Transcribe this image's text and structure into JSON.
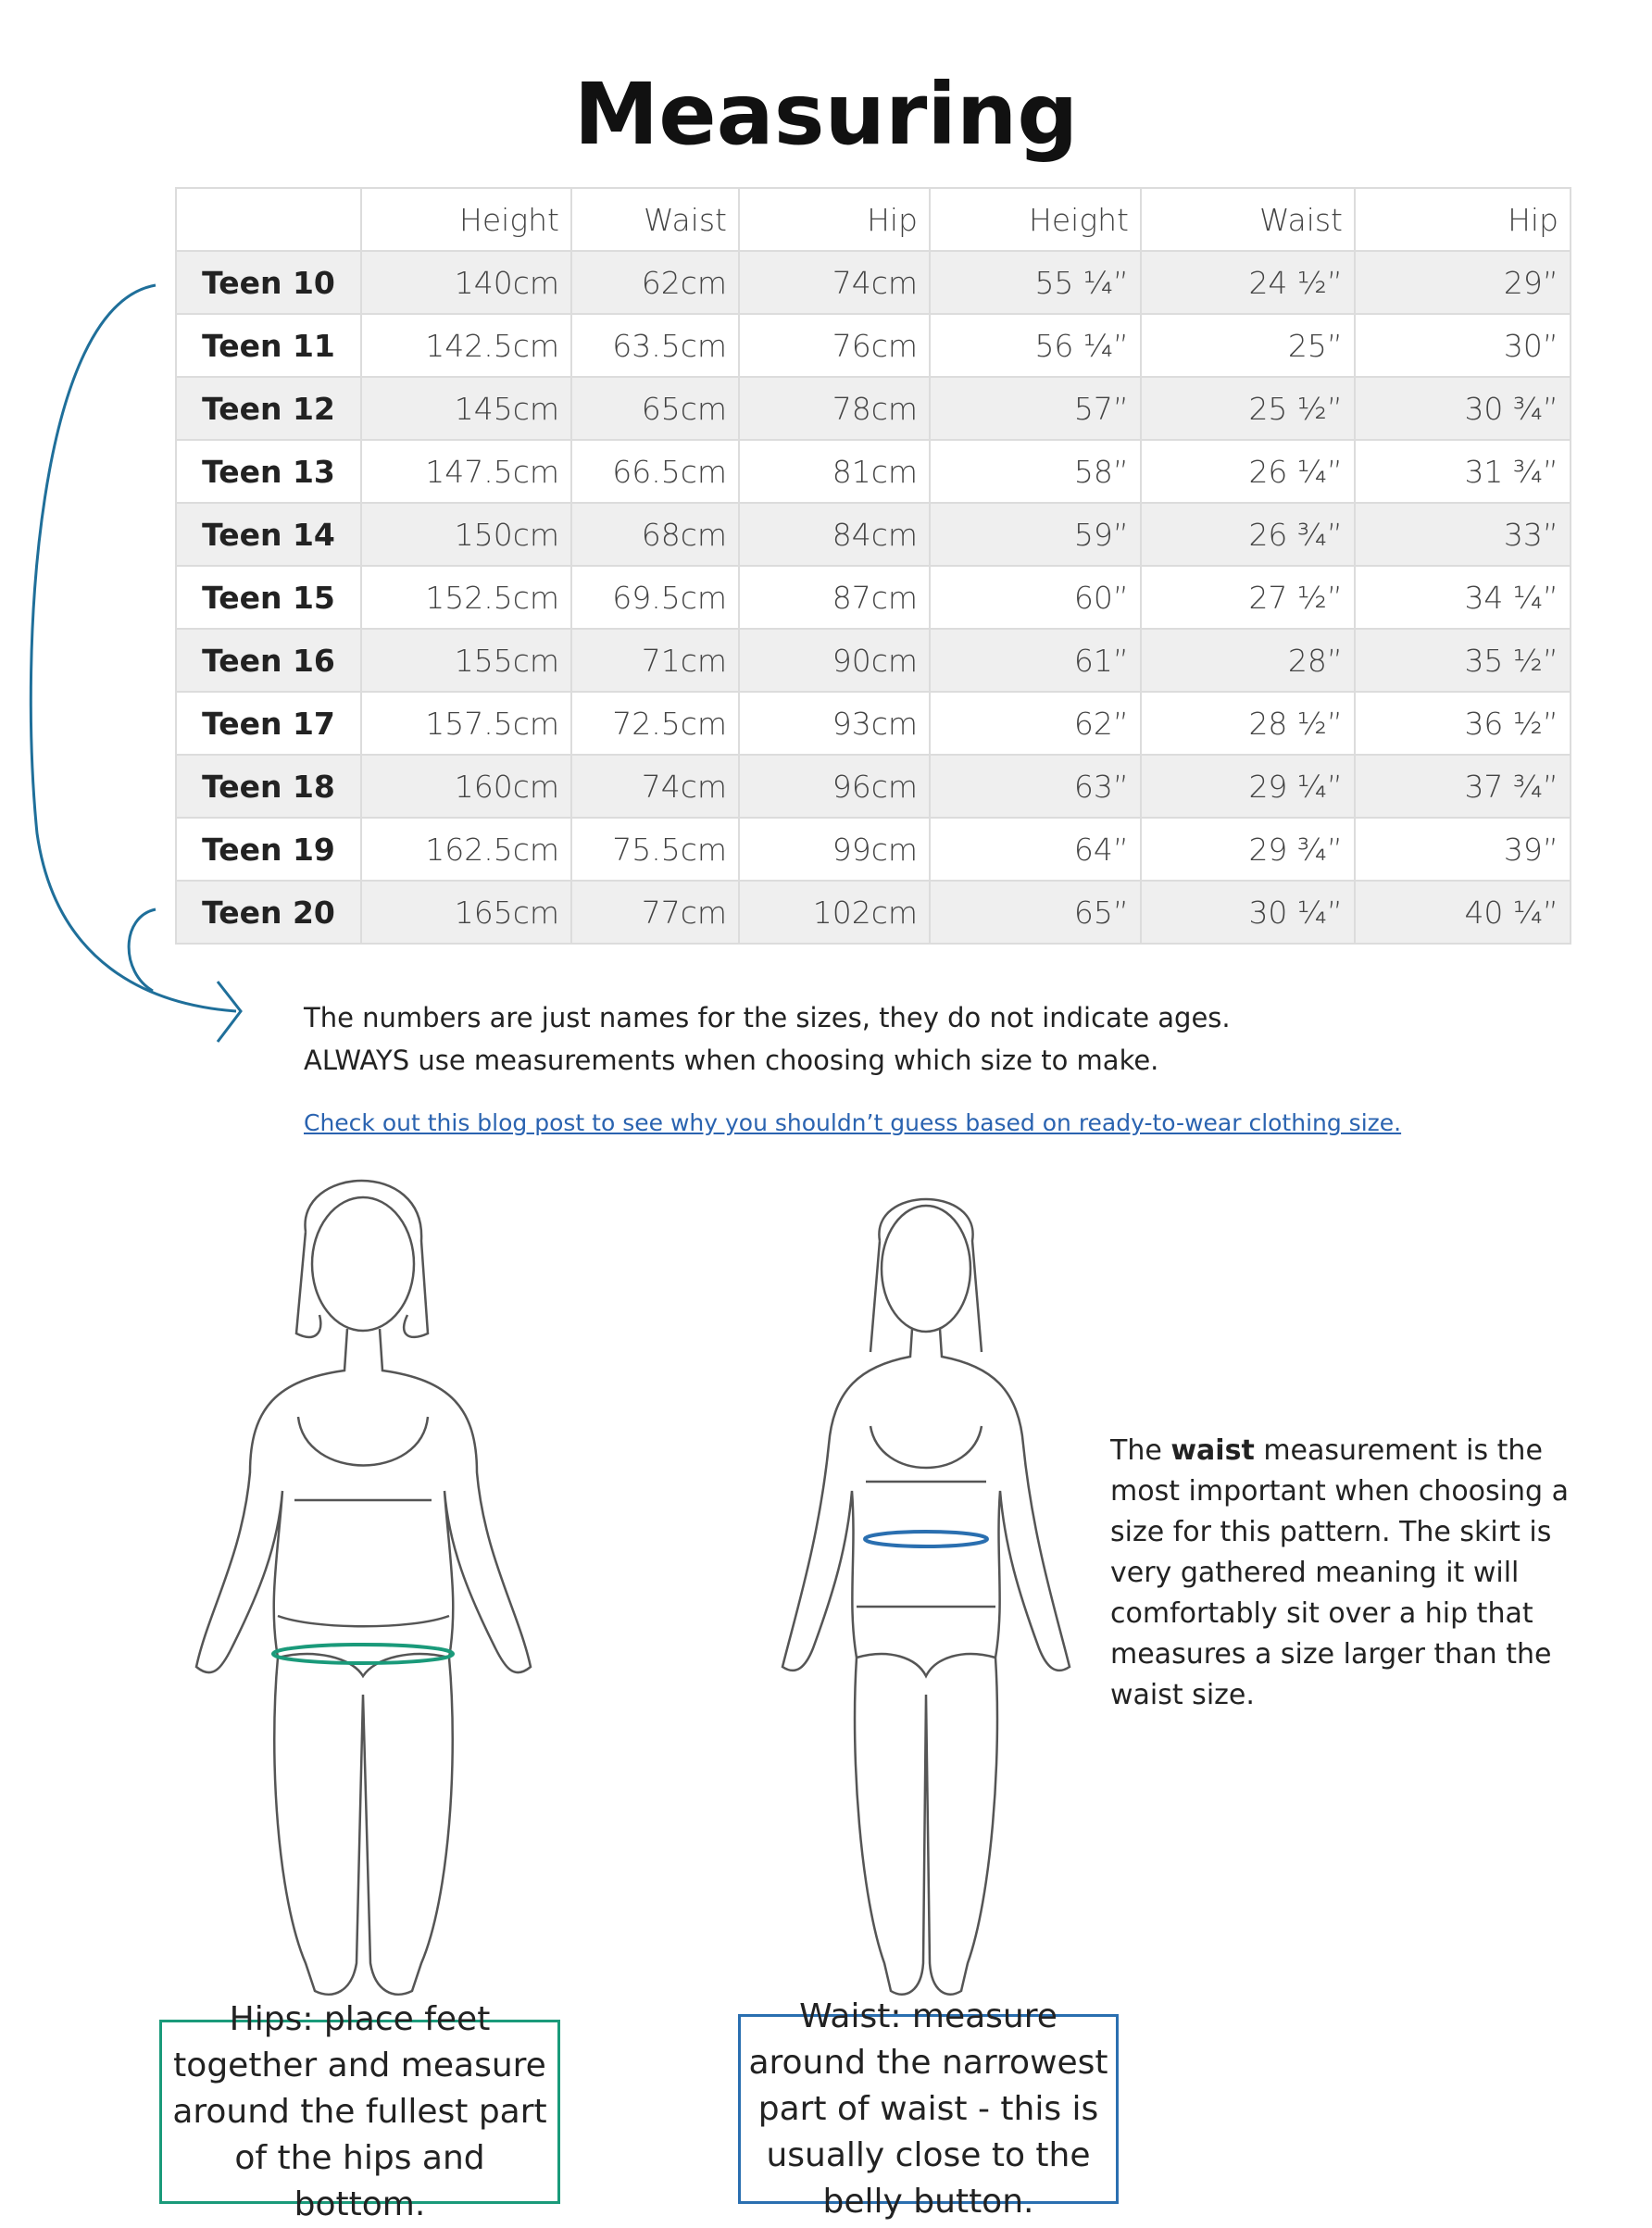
{
  "title": "Measuring",
  "table": {
    "header": [
      "",
      "Height",
      "Waist",
      "Hip",
      "Height",
      "Waist",
      "Hip"
    ],
    "rows": [
      [
        "Teen 10",
        "140cm",
        "62cm",
        "74cm",
        "55 ¼”",
        "24 ½”",
        "29”"
      ],
      [
        "Teen 11",
        "142.5cm",
        "63.5cm",
        "76cm",
        "56 ¼”",
        "25”",
        "30”"
      ],
      [
        "Teen 12",
        "145cm",
        "65cm",
        "78cm",
        "57”",
        "25 ½”",
        "30 ¾”"
      ],
      [
        "Teen 13",
        "147.5cm",
        "66.5cm",
        "81cm",
        "58”",
        "26 ¼”",
        "31 ¾”"
      ],
      [
        "Teen 14",
        "150cm",
        "68cm",
        "84cm",
        "59”",
        "26 ¾”",
        "33”"
      ],
      [
        "Teen 15",
        "152.5cm",
        "69.5cm",
        "87cm",
        "60”",
        "27 ½”",
        "34 ¼”"
      ],
      [
        "Teen 16",
        "155cm",
        "71cm",
        "90cm",
        "61”",
        "28”",
        "35 ½”"
      ],
      [
        "Teen 17",
        "157.5cm",
        "72.5cm",
        "93cm",
        "62”",
        "28 ½”",
        "36 ½”"
      ],
      [
        "Teen 18",
        "160cm",
        "74cm",
        "96cm",
        "63”",
        "29 ¼”",
        "37 ¾”"
      ],
      [
        "Teen 19",
        "162.5cm",
        "75.5cm",
        "99cm",
        "64”",
        "29 ¾”",
        "39”"
      ],
      [
        "Teen 20",
        "165cm",
        "77cm",
        "102cm",
        "65”",
        "30 ¼”",
        "40 ¼”"
      ]
    ]
  },
  "notes": [
    "The numbers are just names for the sizes, they do not indicate ages.",
    "ALWAYS use measurements when choosing which size to make."
  ],
  "link": "Check out this blog post to see why you shouldn’t guess based on ready-to-wear clothing size.",
  "side_note": [
    "The ",
    "waist",
    " measurement is the most important when choosing a size for this pattern. The skirt is very gathered meaning it will comfortably sit over a hip that measures a size larger than the waist size."
  ],
  "captions": {
    "hips": "Hips: place feet together and measure around the fullest part of the hips and bottom.",
    "waist": "Waist: measure around the narrowest part of waist - this is usually close to the belly button."
  }
}
